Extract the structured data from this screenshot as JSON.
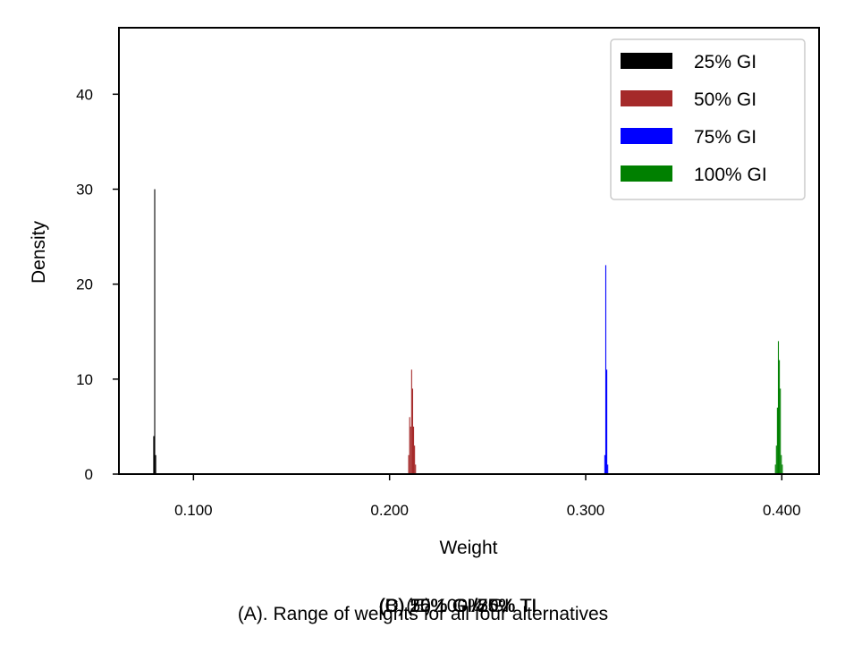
{
  "chart_data": {
    "type": "bar",
    "xlabel": "Weight",
    "ylabel": "Density",
    "xlim": [
      0.062,
      0.419
    ],
    "ylim": [
      0,
      47
    ],
    "xticks": [
      0.1,
      0.2,
      0.3,
      0.4
    ],
    "xtick_labels": [
      "0.100",
      "0.200",
      "0.300",
      "0.400"
    ],
    "yticks": [
      0,
      10,
      20,
      30,
      40
    ],
    "ytick_labels": [
      "0",
      "10",
      "20",
      "30",
      "40"
    ],
    "grid": false,
    "legend_position": "top-right",
    "bin_width": 0.0005,
    "series": [
      {
        "name": "25% GI",
        "color": "#000000",
        "x": [
          0.0795,
          0.08,
          0.0805
        ],
        "values": [
          4,
          30,
          2
        ]
      },
      {
        "name": "50% GI",
        "color": "#a52a2a",
        "x": [
          0.2095,
          0.21,
          0.2105,
          0.211,
          0.2115,
          0.212,
          0.2125,
          0.213
        ],
        "values": [
          2,
          6,
          5,
          11,
          9,
          5,
          3,
          1
        ]
      },
      {
        "name": "75% GI",
        "color": "#0000ff",
        "x": [
          0.3095,
          0.31,
          0.3105,
          0.311
        ],
        "values": [
          2,
          22,
          11,
          1
        ]
      },
      {
        "name": "100% GI",
        "color": "#008000",
        "x": [
          0.3965,
          0.397,
          0.3975,
          0.398,
          0.3985,
          0.399,
          0.3995,
          0.4
        ],
        "values": [
          1,
          3,
          7,
          14,
          12,
          9,
          2,
          1
        ]
      }
    ]
  },
  "captions": {
    "main": "(A). Range of weights for all four alternatives",
    "overlaps": [
      "(B) 25% GI/75% TI",
      "(C) 50% GI/50% TI",
      "(D) 75% GI/25% TI",
      "(E) 100% GI"
    ]
  }
}
